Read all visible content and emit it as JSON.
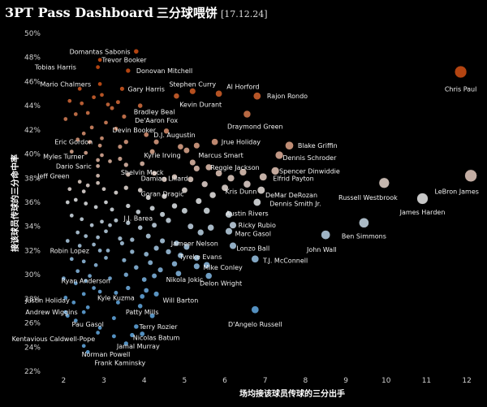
{
  "header": {
    "title": "3PT Pass Dashboard",
    "title_cn": "三分球喂饼",
    "date": "[17.12.24]"
  },
  "chart_data": {
    "type": "scatter",
    "title": "3PT Pass Dashboard 三分球喂饼",
    "xlabel": "场均接该球员传球的三分出手",
    "ylabel": "接该球员传球的三分命中率",
    "xlim": [
      1.55,
      12.3
    ],
    "ylim": [
      21.8,
      50.2
    ],
    "xticks": [
      2,
      3,
      4,
      5,
      6,
      7,
      8,
      9,
      10,
      11,
      12
    ],
    "yticks": [
      22,
      24,
      26,
      28,
      30,
      32,
      34,
      36,
      38,
      40,
      42,
      44,
      46,
      48,
      50
    ],
    "ytick_suffix": "%",
    "color_scale": {
      "low": "#5b9cd0",
      "mid": "#d8d8d8",
      "high": "#c24a12"
    },
    "grid": false,
    "legend": "none",
    "labeled_points": [
      {
        "name": "Domantas Sabonis",
        "x": 3.8,
        "y": 48.5,
        "lx": 2.9,
        "ly": 48.5
      },
      {
        "name": "Trevor Booker",
        "x": 2.9,
        "y": 47.8,
        "lx": 3.5,
        "ly": 47.8
      },
      {
        "name": "Tobias Harris",
        "x": 2.85,
        "y": 47.2,
        "lx": 1.8,
        "ly": 47.2
      },
      {
        "name": "Donovan Mitchell",
        "x": 3.6,
        "y": 46.9,
        "lx": 4.5,
        "ly": 46.9
      },
      {
        "name": "Chris Paul",
        "x": 11.85,
        "y": 46.8,
        "lx": 11.85,
        "ly": 45.4
      },
      {
        "name": "Mario Chalmers",
        "x": 2.9,
        "y": 45.8,
        "lx": 2.05,
        "ly": 45.8
      },
      {
        "name": "Gary Harris",
        "x": 3.45,
        "y": 45.4,
        "lx": 4.05,
        "ly": 45.4
      },
      {
        "name": "Stephen Curry",
        "x": 5.2,
        "y": 45.2,
        "lx": 5.2,
        "ly": 45.8
      },
      {
        "name": "Al Horford",
        "x": 5.85,
        "y": 45.0,
        "lx": 6.45,
        "ly": 45.6
      },
      {
        "name": "Rajon Rondo",
        "x": 6.8,
        "y": 44.8,
        "lx": 7.55,
        "ly": 44.8
      },
      {
        "name": "Kevin Durant",
        "x": 4.8,
        "y": 44.8,
        "lx": 5.4,
        "ly": 44.1
      },
      {
        "name": "Bradley Beal",
        "x": 3.9,
        "y": 44.0,
        "lx": 4.25,
        "ly": 43.5
      },
      {
        "name": "De'Aaron Fox",
        "x": 3.5,
        "y": 43.1,
        "lx": 4.3,
        "ly": 42.8
      },
      {
        "name": "Draymond Green",
        "x": 6.55,
        "y": 43.3,
        "lx": 6.75,
        "ly": 42.3
      },
      {
        "name": "Devin Booker",
        "x": 3.3,
        "y": 42.1,
        "lx": 3.75,
        "ly": 42.0
      },
      {
        "name": "D.J. Augustin",
        "x": 4.05,
        "y": 41.6,
        "lx": 4.75,
        "ly": 41.6
      },
      {
        "name": "Eric Gordon",
        "x": 2.95,
        "y": 41.3,
        "lx": 2.25,
        "ly": 41.0
      },
      {
        "name": "Jrue Holiday",
        "x": 5.75,
        "y": 41.0,
        "lx": 6.4,
        "ly": 41.0
      },
      {
        "name": "Blake Griffin",
        "x": 7.6,
        "y": 40.7,
        "lx": 8.3,
        "ly": 40.7
      },
      {
        "name": "Kyrie Irving",
        "x": 4.2,
        "y": 40.2,
        "lx": 4.45,
        "ly": 39.9
      },
      {
        "name": "Marcus Smart",
        "x": 5.05,
        "y": 40.3,
        "lx": 5.9,
        "ly": 39.9
      },
      {
        "name": "Myles Turner",
        "x": 2.95,
        "y": 39.9,
        "lx": 2.0,
        "ly": 39.8
      },
      {
        "name": "Dennis Schroder",
        "x": 7.35,
        "y": 39.9,
        "lx": 8.1,
        "ly": 39.7
      },
      {
        "name": "Dario Saric",
        "x": 2.85,
        "y": 39.0,
        "lx": 2.25,
        "ly": 39.0
      },
      {
        "name": "Reggie Jackson",
        "x": 5.3,
        "y": 38.8,
        "lx": 6.25,
        "ly": 38.9
      },
      {
        "name": "Spencer Dinwiddie",
        "x": 7.25,
        "y": 38.6,
        "lx": 8.1,
        "ly": 38.6
      },
      {
        "name": "Shelvin Mack",
        "x": 3.6,
        "y": 38.3,
        "lx": 3.95,
        "ly": 38.5
      },
      {
        "name": "Jeff Green",
        "x": 2.85,
        "y": 38.2,
        "lx": 1.75,
        "ly": 38.2
      },
      {
        "name": "Elfrid Payton",
        "x": 6.95,
        "y": 38.1,
        "lx": 7.7,
        "ly": 38.0
      },
      {
        "name": "LeBron James",
        "x": 12.1,
        "y": 38.2,
        "lx": 11.75,
        "ly": 36.9
      },
      {
        "name": "Damian Lillard",
        "x": 4.5,
        "y": 37.9,
        "lx": 4.5,
        "ly": 38.0
      },
      {
        "name": "Kris Dunn",
        "x": 6.0,
        "y": 37.2,
        "lx": 6.4,
        "ly": 36.9
      },
      {
        "name": "DeMar DeRozan",
        "x": 6.9,
        "y": 37.0,
        "lx": 7.65,
        "ly": 36.6
      },
      {
        "name": "Russell Westbrook",
        "x": 9.95,
        "y": 37.6,
        "lx": 9.55,
        "ly": 36.4
      },
      {
        "name": "Goran Dragic",
        "x": 4.5,
        "y": 36.5,
        "lx": 4.45,
        "ly": 36.7
      },
      {
        "name": "Dennis Smith Jr.",
        "x": 6.8,
        "y": 36.0,
        "lx": 7.75,
        "ly": 35.9
      },
      {
        "name": "James Harden",
        "x": 10.9,
        "y": 36.3,
        "lx": 10.9,
        "ly": 35.2
      },
      {
        "name": "Austin Rivers",
        "x": 6.1,
        "y": 35.0,
        "lx": 6.55,
        "ly": 35.1
      },
      {
        "name": "J.J. Barea",
        "x": 3.3,
        "y": 34.5,
        "lx": 3.85,
        "ly": 34.7
      },
      {
        "name": "Ricky Rubio",
        "x": 6.2,
        "y": 34.1,
        "lx": 6.8,
        "ly": 34.1
      },
      {
        "name": "Marc Gasol",
        "x": 6.1,
        "y": 33.6,
        "lx": 6.7,
        "ly": 33.4
      },
      {
        "name": "Ben Simmons",
        "x": 9.45,
        "y": 34.3,
        "lx": 9.45,
        "ly": 33.2
      },
      {
        "name": "John Wall",
        "x": 8.5,
        "y": 33.3,
        "lx": 8.4,
        "ly": 32.1
      },
      {
        "name": "Jameer Nelson",
        "x": 4.8,
        "y": 32.6,
        "lx": 5.25,
        "ly": 32.6
      },
      {
        "name": "Lonzo Ball",
        "x": 6.2,
        "y": 32.4,
        "lx": 6.7,
        "ly": 32.2
      },
      {
        "name": "Robin Lopez",
        "x": 2.9,
        "y": 32.0,
        "lx": 2.15,
        "ly": 32.0
      },
      {
        "name": "Tyreke Evans",
        "x": 4.9,
        "y": 31.6,
        "lx": 5.4,
        "ly": 31.5
      },
      {
        "name": "T.J. McConnell",
        "x": 6.75,
        "y": 31.3,
        "lx": 7.5,
        "ly": 31.2
      },
      {
        "name": "Mike Conley",
        "x": 5.55,
        "y": 30.8,
        "lx": 5.95,
        "ly": 30.6
      },
      {
        "name": "Nikola Jokic",
        "x": 4.85,
        "y": 30.1,
        "lx": 5.0,
        "ly": 29.6
      },
      {
        "name": "Ryan Anderson",
        "x": 2.55,
        "y": 29.5,
        "lx": 2.55,
        "ly": 29.5
      },
      {
        "name": "Delon Wright",
        "x": 5.6,
        "y": 29.9,
        "lx": 5.9,
        "ly": 29.3
      },
      {
        "name": "Kyle Kuzma",
        "x": 3.3,
        "y": 28.5,
        "lx": 3.3,
        "ly": 28.1
      },
      {
        "name": "Justin Holiday",
        "x": 2.05,
        "y": 28.1,
        "lx": 1.6,
        "ly": 27.9
      },
      {
        "name": "Will Barton",
        "x": 4.3,
        "y": 28.4,
        "lx": 4.9,
        "ly": 27.9
      },
      {
        "name": "Patty Mills",
        "x": 3.9,
        "y": 27.4,
        "lx": 3.95,
        "ly": 26.9
      },
      {
        "name": "D'Angelo Russell",
        "x": 6.75,
        "y": 27.1,
        "lx": 6.75,
        "ly": 25.9
      },
      {
        "name": "Andrew Wiggins",
        "x": 2.05,
        "y": 26.9,
        "lx": 1.7,
        "ly": 26.9
      },
      {
        "name": "Pau Gasol",
        "x": 2.3,
        "y": 26.2,
        "lx": 2.6,
        "ly": 25.9
      },
      {
        "name": "Terry Rozier",
        "x": 3.8,
        "y": 25.7,
        "lx": 4.35,
        "ly": 25.7
      },
      {
        "name": "Kentavious Caldwell-Pope",
        "x": 2.85,
        "y": 25.2,
        "lx": 1.75,
        "ly": 24.7
      },
      {
        "name": "Nicolas Batum",
        "x": 3.7,
        "y": 25.0,
        "lx": 4.3,
        "ly": 24.8
      },
      {
        "name": "Jamal Murray",
        "x": 3.55,
        "y": 24.3,
        "lx": 3.85,
        "ly": 24.1
      },
      {
        "name": "Norman Powell",
        "x": 2.5,
        "y": 24.1,
        "lx": 3.05,
        "ly": 23.4
      },
      {
        "name": "Frank Kaminsky",
        "x": 2.6,
        "y": 23.6,
        "lx": 3.4,
        "ly": 22.7
      }
    ],
    "unlabeled_points": [
      [
        2.05,
        42.9
      ],
      [
        2.15,
        44.4
      ],
      [
        2.3,
        43.3
      ],
      [
        2.4,
        45.4
      ],
      [
        2.45,
        44.2
      ],
      [
        2.6,
        43.4
      ],
      [
        2.75,
        44.7
      ],
      [
        2.95,
        44.9
      ],
      [
        3.1,
        44.1
      ],
      [
        3.2,
        43.8
      ],
      [
        3.35,
        44.3
      ],
      [
        3.05,
        42.6
      ],
      [
        2.7,
        42.2
      ],
      [
        2.5,
        41.7
      ],
      [
        2.35,
        41.2
      ],
      [
        2.65,
        41.0
      ],
      [
        2.9,
        40.7
      ],
      [
        3.4,
        40.6
      ],
      [
        3.55,
        41.0
      ],
      [
        4.3,
        41.0
      ],
      [
        4.55,
        41.9
      ],
      [
        4.9,
        40.6
      ],
      [
        5.3,
        40.7
      ],
      [
        2.2,
        40.2
      ],
      [
        2.55,
        40.1
      ],
      [
        2.85,
        39.5
      ],
      [
        3.15,
        39.4
      ],
      [
        3.4,
        39.6
      ],
      [
        3.55,
        39.1
      ],
      [
        3.95,
        39.2
      ],
      [
        5.2,
        39.3
      ],
      [
        5.6,
        38.9
      ],
      [
        5.85,
        38.4
      ],
      [
        6.15,
        38.0
      ],
      [
        6.45,
        38.5
      ],
      [
        4.25,
        38.4
      ],
      [
        4.75,
        38.1
      ],
      [
        5.15,
        37.9
      ],
      [
        5.5,
        37.5
      ],
      [
        2.4,
        37.7
      ],
      [
        2.6,
        37.4
      ],
      [
        2.85,
        37.6
      ],
      [
        2.15,
        37.1
      ],
      [
        2.5,
        36.9
      ],
      [
        3.0,
        37.1
      ],
      [
        3.3,
        36.8
      ],
      [
        3.55,
        37.2
      ],
      [
        3.9,
        37.0
      ],
      [
        4.1,
        36.4
      ],
      [
        5.0,
        37.0
      ],
      [
        5.7,
        36.6
      ],
      [
        6.55,
        37.5
      ],
      [
        2.1,
        36.0
      ],
      [
        2.3,
        36.2
      ],
      [
        2.55,
        35.9
      ],
      [
        2.8,
        35.6
      ],
      [
        3.05,
        36.0
      ],
      [
        3.2,
        35.4
      ],
      [
        3.6,
        35.7
      ],
      [
        3.85,
        35.2
      ],
      [
        4.2,
        35.5
      ],
      [
        4.45,
        35.0
      ],
      [
        4.75,
        35.7
      ],
      [
        5.0,
        35.3
      ],
      [
        5.35,
        36.1
      ],
      [
        5.55,
        35.3
      ],
      [
        2.2,
        34.9
      ],
      [
        2.45,
        34.6
      ],
      [
        2.7,
        34.1
      ],
      [
        2.95,
        34.4
      ],
      [
        3.15,
        34.1
      ],
      [
        3.6,
        34.3
      ],
      [
        3.9,
        33.9
      ],
      [
        4.25,
        34.1
      ],
      [
        4.6,
        34.5
      ],
      [
        5.15,
        34.0
      ],
      [
        5.4,
        33.5
      ],
      [
        5.65,
        33.9
      ],
      [
        2.35,
        33.5
      ],
      [
        2.55,
        33.2
      ],
      [
        2.85,
        33.1
      ],
      [
        3.05,
        33.6
      ],
      [
        3.4,
        33.0
      ],
      [
        3.7,
        32.9
      ],
      [
        4.1,
        33.2
      ],
      [
        4.45,
        32.8
      ],
      [
        2.1,
        32.8
      ],
      [
        2.4,
        32.4
      ],
      [
        2.75,
        32.5
      ],
      [
        3.1,
        32.0
      ],
      [
        3.45,
        32.6
      ],
      [
        3.7,
        31.9
      ],
      [
        4.05,
        31.7
      ],
      [
        4.3,
        32.2
      ],
      [
        4.6,
        31.9
      ],
      [
        5.05,
        32.3
      ],
      [
        5.3,
        31.4
      ],
      [
        2.2,
        31.3
      ],
      [
        2.5,
        31.1
      ],
      [
        2.8,
        30.8
      ],
      [
        3.05,
        31.4
      ],
      [
        3.5,
        31.2
      ],
      [
        3.8,
        30.6
      ],
      [
        4.15,
        31.0
      ],
      [
        4.4,
        30.4
      ],
      [
        4.75,
        30.9
      ],
      [
        5.3,
        30.7
      ],
      [
        2.35,
        30.3
      ],
      [
        2.65,
        29.9
      ],
      [
        3.15,
        29.7
      ],
      [
        3.55,
        30.0
      ],
      [
        4.0,
        29.6
      ],
      [
        4.25,
        29.9
      ],
      [
        2.0,
        29.7
      ],
      [
        2.3,
        29.3
      ],
      [
        2.75,
        28.9
      ],
      [
        3.6,
        28.9
      ],
      [
        4.05,
        28.7
      ],
      [
        2.5,
        28.4
      ],
      [
        2.9,
        28.6
      ],
      [
        3.95,
        28.2
      ],
      [
        2.25,
        27.7
      ],
      [
        2.6,
        27.3
      ],
      [
        3.35,
        27.7
      ],
      [
        2.1,
        26.6
      ],
      [
        2.5,
        26.9
      ],
      [
        3.25,
        26.4
      ],
      [
        4.2,
        26.6
      ],
      [
        2.9,
        25.6
      ],
      [
        3.95,
        25.1
      ],
      [
        3.25,
        24.9
      ]
    ]
  }
}
